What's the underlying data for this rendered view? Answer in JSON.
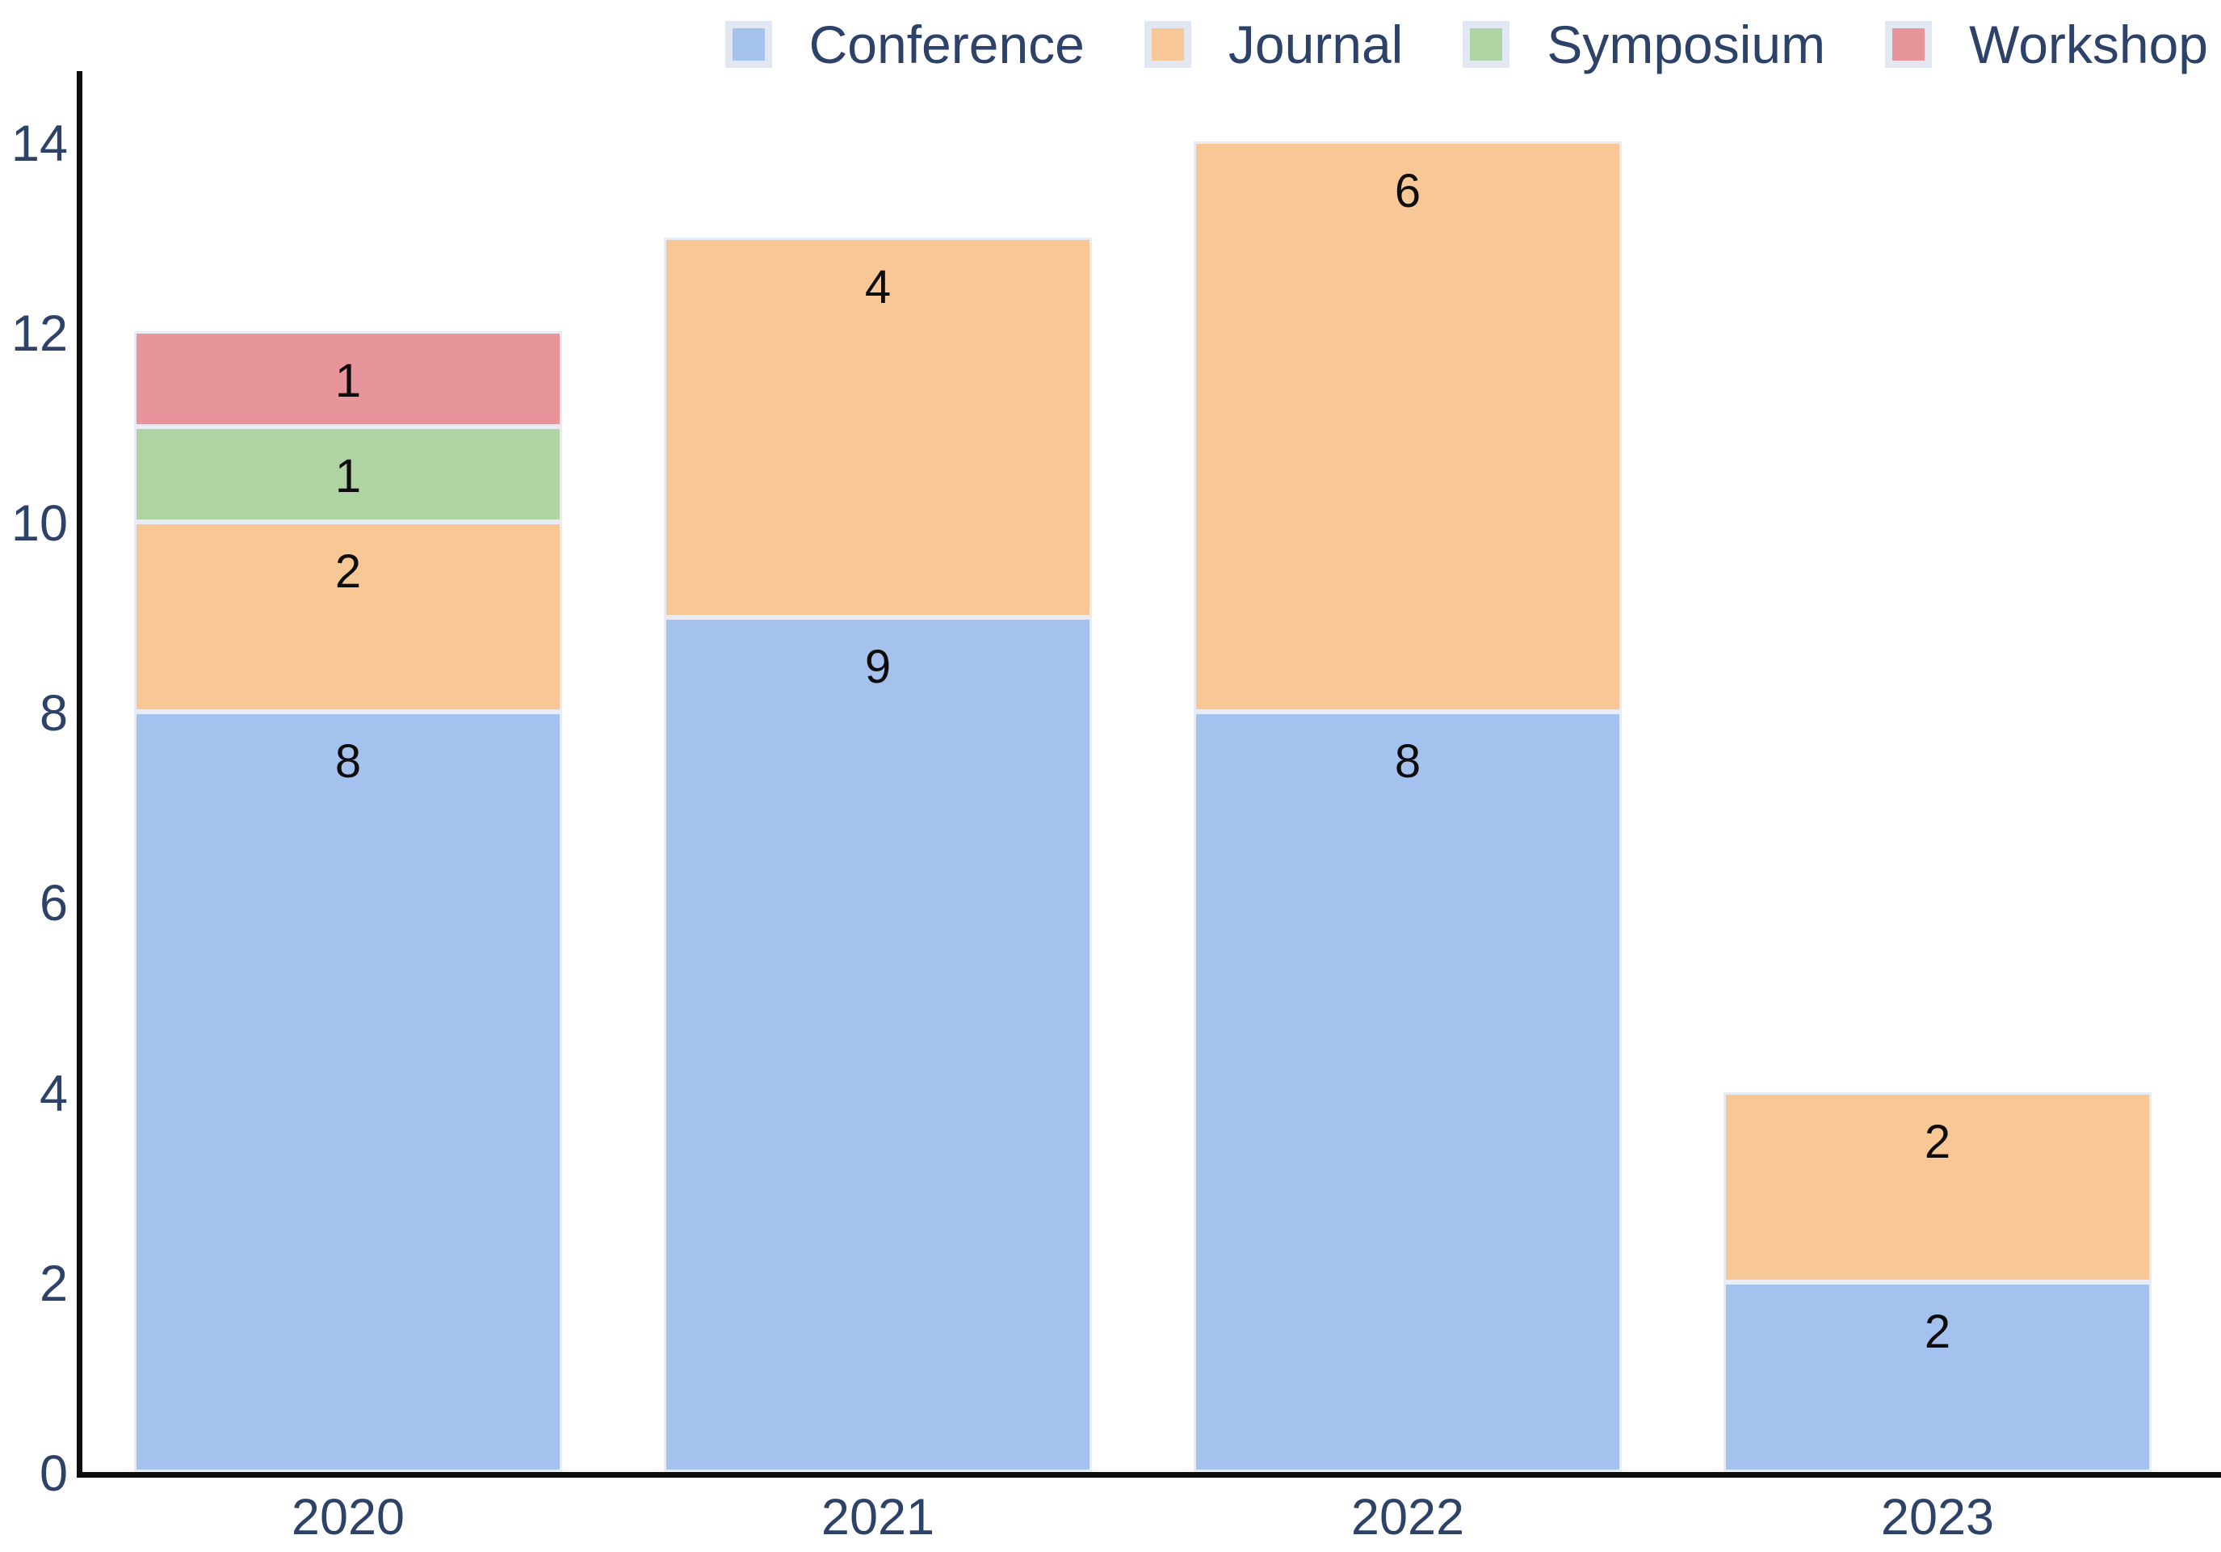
{
  "chart_data": {
    "type": "bar",
    "stacked": true,
    "title": "",
    "xlabel": "",
    "ylabel": "",
    "categories": [
      "2020",
      "2021",
      "2022",
      "2023"
    ],
    "series": [
      {
        "name": "Conference",
        "color": "#a5c2ef",
        "values": [
          8,
          9,
          8,
          2
        ]
      },
      {
        "name": "Journal",
        "color": "#f8c796",
        "values": [
          2,
          4,
          6,
          2
        ]
      },
      {
        "name": "Symposium",
        "color": "#afd3a2",
        "values": [
          1,
          0,
          0,
          0
        ]
      },
      {
        "name": "Workshop",
        "color": "#e8949b",
        "values": [
          1,
          0,
          0,
          0
        ]
      }
    ],
    "totals": [
      12,
      13,
      14,
      4
    ],
    "bar_value_labels_visible": true,
    "ylim": [
      0,
      14
    ],
    "yticks": [
      0,
      2,
      4,
      6,
      8,
      10,
      12,
      14
    ],
    "grid": false,
    "legend_position": "top-right"
  },
  "colors": {
    "background": "#ffffff",
    "axis": "#0e0e0e",
    "tick_text": "#2d4269",
    "legend_text": "#2d4269",
    "bar_label_text": "#0d0d0d",
    "segment_border": "#e9ecf4",
    "legend_swatch_frame": "#e2e8f3"
  }
}
